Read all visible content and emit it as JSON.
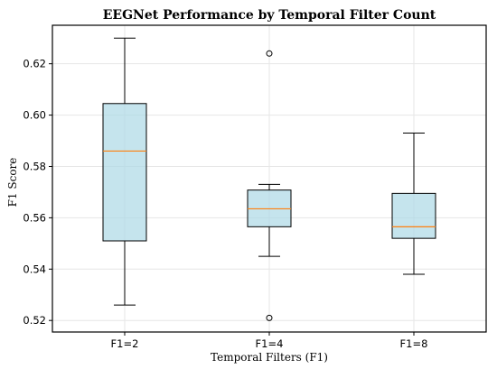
{
  "chart_data": {
    "type": "box",
    "title": "EEGNet Performance by Temporal Filter Count",
    "xlabel": "Temporal Filters (F1)",
    "ylabel": "F1 Score",
    "ylim": [
      0.5155,
      0.635
    ],
    "yticks": [
      0.52,
      0.54,
      0.56,
      0.58,
      0.6,
      0.62
    ],
    "ytick_labels": [
      "0.52",
      "0.54",
      "0.56",
      "0.58",
      "0.60",
      "0.62"
    ],
    "grid": true,
    "categories": [
      "F1=2",
      "F1=4",
      "F1=8"
    ],
    "boxes": [
      {
        "category": "F1=2",
        "whisker_low": 0.526,
        "q1": 0.551,
        "median": 0.586,
        "q3": 0.6045,
        "whisker_high": 0.63,
        "outliers": []
      },
      {
        "category": "F1=4",
        "whisker_low": 0.545,
        "q1": 0.5565,
        "median": 0.5635,
        "q3": 0.5708,
        "whisker_high": 0.573,
        "outliers": [
          0.624,
          0.521
        ]
      },
      {
        "category": "F1=8",
        "whisker_low": 0.538,
        "q1": 0.552,
        "median": 0.5565,
        "q3": 0.5695,
        "whisker_high": 0.593,
        "outliers": []
      }
    ],
    "colors": {
      "box_fill": "#add8e6",
      "box_stroke": "#000000",
      "median": "#ff7f0e",
      "grid": "#e6e6e6"
    }
  }
}
